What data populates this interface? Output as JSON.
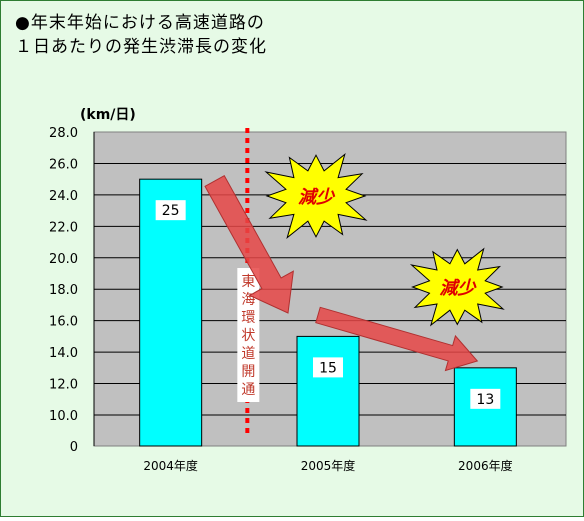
{
  "title_lines": [
    "●年末年始における高速道路の",
    "１日あたりの発生渋滞長の変化"
  ],
  "chart_data": {
    "type": "bar",
    "unit_label": "(km/日)",
    "categories": [
      "2004年度",
      "2005年度",
      "2006年度"
    ],
    "values": [
      25,
      15,
      13
    ],
    "data_labels": [
      "25",
      "15",
      "13"
    ],
    "ylim": [
      0,
      28
    ],
    "yticks": [
      "0",
      "10.0",
      "12.0",
      "14.0",
      "16.0",
      "18.0",
      "20.0",
      "22.0",
      "24.0",
      "26.0",
      "28.0"
    ],
    "annotations": {
      "event_label": "東海環状道開通",
      "decrease_labels": [
        "減少",
        "減少"
      ]
    },
    "colors": {
      "bar": "#00ffff",
      "plot_bg": "#c0c0c0",
      "arrow": "#e64646",
      "burst": "#ffff00",
      "event_line": "#ff0000",
      "background": "#e6fae6"
    }
  }
}
